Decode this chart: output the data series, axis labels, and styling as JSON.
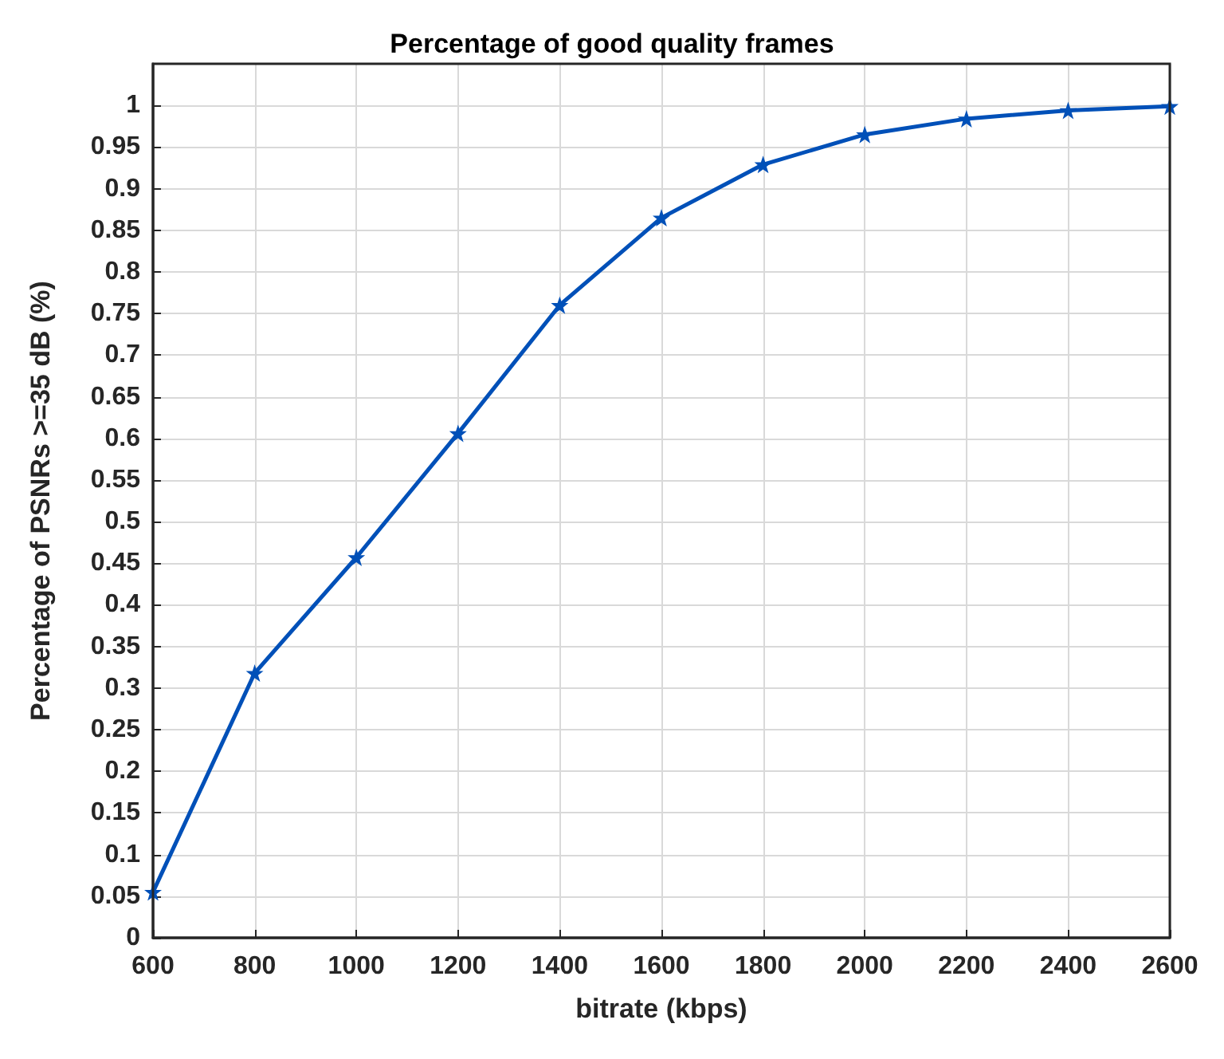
{
  "chart_data": {
    "type": "line",
    "title": "Percentage of good quality frames",
    "xlabel": "bitrate (kbps)",
    "ylabel": "Percentage of PSNRs >=35 dB (%)",
    "x": [
      600,
      800,
      1000,
      1200,
      1400,
      1600,
      1800,
      2000,
      2200,
      2400,
      2600
    ],
    "series": [
      {
        "color": "#0050b8",
        "values": [
          0.055,
          0.318,
          0.457,
          0.606,
          0.76,
          0.865,
          0.929,
          0.965,
          0.984,
          0.994,
          0.999
        ]
      }
    ],
    "xlim": [
      600,
      2600
    ],
    "xticks": [
      600,
      800,
      1000,
      1200,
      1400,
      1600,
      1800,
      2000,
      2200,
      2400,
      2600
    ],
    "ylim": [
      0,
      1.05
    ],
    "yticks": [
      0,
      0.05,
      0.1,
      0.15,
      0.2,
      0.25,
      0.3,
      0.35,
      0.4,
      0.45,
      0.5,
      0.55,
      0.6,
      0.65,
      0.7,
      0.75,
      0.8,
      0.85,
      0.9,
      0.95,
      1
    ],
    "grid": true,
    "marker": "star",
    "line_style": "solid"
  }
}
